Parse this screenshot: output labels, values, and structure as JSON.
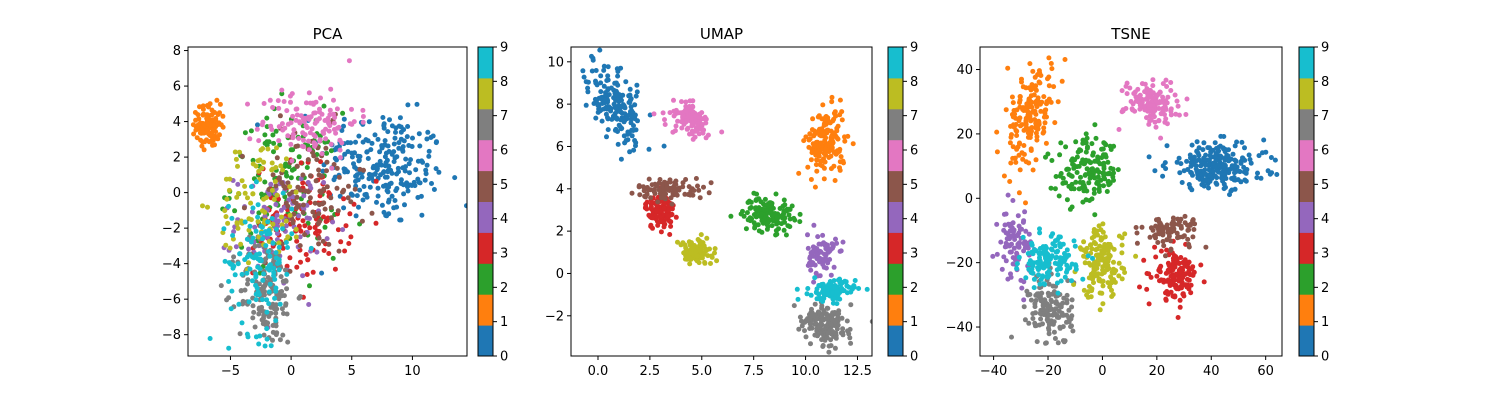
{
  "chart_data": [
    {
      "type": "scatter",
      "title": "PCA",
      "xlim": [
        -8.5,
        14.5
      ],
      "ylim": [
        -9.2,
        8.2
      ],
      "xticks": [
        -5,
        0,
        5,
        10
      ],
      "yticks": [
        -8,
        -6,
        -4,
        -2,
        0,
        2,
        4,
        6,
        8
      ],
      "grid": false,
      "clusters": [
        {
          "label": 0,
          "cx": 7.5,
          "cy": 1.5,
          "sx": 2.6,
          "sy": 1.6,
          "n": 240,
          "rot": -0.15
        },
        {
          "label": 1,
          "cx": -6.8,
          "cy": 3.8,
          "sx": 0.5,
          "sy": 0.6,
          "n": 110,
          "rot": 0
        },
        {
          "label": 2,
          "cx": -0.5,
          "cy": 0.5,
          "sx": 2.2,
          "sy": 2.0,
          "n": 130,
          "rot": 0
        },
        {
          "label": 3,
          "cx": 1.0,
          "cy": -1.5,
          "sx": 2.0,
          "sy": 1.6,
          "n": 120,
          "rot": 0
        },
        {
          "label": 4,
          "cx": -1.0,
          "cy": -1.8,
          "sx": 1.8,
          "sy": 1.5,
          "n": 90,
          "rot": 0
        },
        {
          "label": 5,
          "cx": 1.5,
          "cy": 0.0,
          "sx": 2.3,
          "sy": 1.8,
          "n": 110,
          "rot": 0
        },
        {
          "label": 6,
          "cx": 1.5,
          "cy": 4.0,
          "sx": 2.0,
          "sy": 1.0,
          "n": 120,
          "rot": 0
        },
        {
          "label": 7,
          "cx": -2.0,
          "cy": -5.6,
          "sx": 1.2,
          "sy": 1.5,
          "n": 150,
          "rot": 0
        },
        {
          "label": 8,
          "cx": -2.5,
          "cy": -0.5,
          "sx": 1.8,
          "sy": 1.8,
          "n": 90,
          "rot": 0
        },
        {
          "label": 9,
          "cx": -2.5,
          "cy": -4.0,
          "sx": 1.3,
          "sy": 2.0,
          "n": 120,
          "rot": 0
        }
      ]
    },
    {
      "type": "scatter",
      "title": "UMAP",
      "xlim": [
        -1.3,
        13.2
      ],
      "ylim": [
        -3.9,
        10.7
      ],
      "xticks": [
        0.0,
        2.5,
        5.0,
        7.5,
        10.0,
        12.5
      ],
      "xtick_labels": [
        "0.0",
        "2.5",
        "5.0",
        "7.5",
        "10.0",
        "12.5"
      ],
      "yticks": [
        -2,
        0,
        2,
        4,
        6,
        8,
        10
      ],
      "grid": false,
      "clusters": [
        {
          "label": 0,
          "cx": 0.8,
          "cy": 8.0,
          "sx": 0.55,
          "sy": 1.0,
          "n": 190,
          "rot": 0.5
        },
        {
          "label": 1,
          "cx": 11.0,
          "cy": 6.2,
          "sx": 0.45,
          "sy": 0.8,
          "n": 160,
          "rot": 0
        },
        {
          "label": 2,
          "cx": 8.2,
          "cy": 2.8,
          "sx": 0.6,
          "sy": 0.4,
          "n": 140,
          "rot": 0
        },
        {
          "label": 3,
          "cx": 3.0,
          "cy": 2.9,
          "sx": 0.35,
          "sy": 0.4,
          "n": 110,
          "rot": 0
        },
        {
          "label": 4,
          "cx": 10.8,
          "cy": 0.9,
          "sx": 0.35,
          "sy": 0.5,
          "n": 80,
          "rot": 0
        },
        {
          "label": 5,
          "cx": 3.5,
          "cy": 4.0,
          "sx": 0.8,
          "sy": 0.25,
          "n": 90,
          "rot": 0
        },
        {
          "label": 6,
          "cx": 4.4,
          "cy": 7.3,
          "sx": 0.6,
          "sy": 0.35,
          "n": 110,
          "rot": -0.5
        },
        {
          "label": 7,
          "cx": 11.0,
          "cy": -2.4,
          "sx": 0.55,
          "sy": 0.45,
          "n": 160,
          "rot": -0.4
        },
        {
          "label": 8,
          "cx": 4.7,
          "cy": 1.0,
          "sx": 0.4,
          "sy": 0.3,
          "n": 110,
          "rot": 0
        },
        {
          "label": 9,
          "cx": 11.3,
          "cy": -0.8,
          "sx": 0.55,
          "sy": 0.25,
          "n": 110,
          "rot": 0
        }
      ]
    },
    {
      "type": "scatter",
      "title": "TSNE",
      "xlim": [
        -45,
        66
      ],
      "ylim": [
        -49,
        47
      ],
      "xticks": [
        -40,
        -20,
        0,
        20,
        40,
        60
      ],
      "yticks": [
        -40,
        -20,
        0,
        20,
        40
      ],
      "grid": false,
      "clusters": [
        {
          "label": 0,
          "cx": 42,
          "cy": 10,
          "sx": 9,
          "sy": 3.6,
          "n": 230,
          "rot": 0
        },
        {
          "label": 1,
          "cx": -27,
          "cy": 25,
          "sx": 4.0,
          "sy": 7.5,
          "n": 170,
          "rot": -0.3
        },
        {
          "label": 2,
          "cx": -5,
          "cy": 8,
          "sx": 6.0,
          "sy": 5.0,
          "n": 150,
          "rot": 0
        },
        {
          "label": 3,
          "cx": 27,
          "cy": -24,
          "sx": 4.0,
          "sy": 3.8,
          "n": 140,
          "rot": 0
        },
        {
          "label": 4,
          "cx": -32,
          "cy": -14,
          "sx": 3.0,
          "sy": 5.0,
          "n": 90,
          "rot": 0
        },
        {
          "label": 5,
          "cx": 25,
          "cy": -10,
          "sx": 5.0,
          "sy": 2.5,
          "n": 80,
          "rot": 0
        },
        {
          "label": 6,
          "cx": 18,
          "cy": 30,
          "sx": 5.0,
          "sy": 3.5,
          "n": 130,
          "rot": 0
        },
        {
          "label": 7,
          "cx": -19,
          "cy": -35,
          "sx": 4.0,
          "sy": 5.5,
          "n": 140,
          "rot": 0
        },
        {
          "label": 8,
          "cx": 0,
          "cy": -20,
          "sx": 4.0,
          "sy": 5.5,
          "n": 150,
          "rot": 0
        },
        {
          "label": 9,
          "cx": -20,
          "cy": -20,
          "sx": 5.0,
          "sy": 3.8,
          "n": 130,
          "rot": 0
        }
      ]
    }
  ],
  "colorbar": {
    "labels": [
      "0",
      "1",
      "2",
      "3",
      "4",
      "5",
      "6",
      "7",
      "8",
      "9"
    ],
    "colors": [
      "#1f77b4",
      "#ff7f0e",
      "#2ca02c",
      "#d62728",
      "#9467bd",
      "#8c564b",
      "#e377c2",
      "#7f7f7f",
      "#bcbd22",
      "#17becf"
    ]
  }
}
